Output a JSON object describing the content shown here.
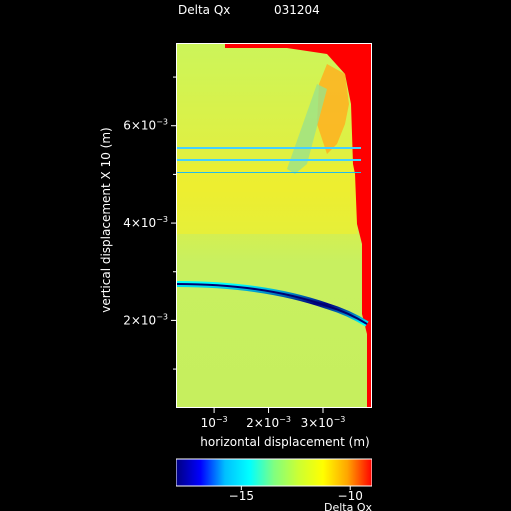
{
  "header": {
    "label": "Delta Qx",
    "run_id": "031204"
  },
  "chart_data": {
    "type": "heatmap",
    "xlabel": "horizontal displacement (m)",
    "ylabel": "vertical displacement X 10 (m)",
    "x_ticks": [
      {
        "value": 0.001,
        "label": "10",
        "exp": "−3"
      },
      {
        "value": 0.002,
        "label": "2×10",
        "exp": "−3"
      },
      {
        "value": 0.003,
        "label": "3×10",
        "exp": "−3"
      }
    ],
    "y_ticks": [
      {
        "value": 0.002,
        "label": "2×10",
        "exp": "−3"
      },
      {
        "value": 0.004,
        "label": "4×10",
        "exp": "−3"
      },
      {
        "value": 0.006,
        "label": "6×10",
        "exp": "−3"
      }
    ],
    "colorbar": {
      "title": "Delta Qx",
      "range": [
        -18,
        -9
      ],
      "ticks": [
        {
          "value": -15,
          "label": "−15"
        },
        {
          "value": -10,
          "label": "−10"
        }
      ],
      "colors": [
        "#000080",
        "#0000ff",
        "#00bfff",
        "#00ffff",
        "#80ff80",
        "#ccff33",
        "#ffff00",
        "#ffa500",
        "#ff0000"
      ]
    },
    "dominant_value": -13,
    "features": [
      {
        "name": "resonance band",
        "value": -16.5
      },
      {
        "name": "unstable region",
        "value": -9
      }
    ]
  }
}
